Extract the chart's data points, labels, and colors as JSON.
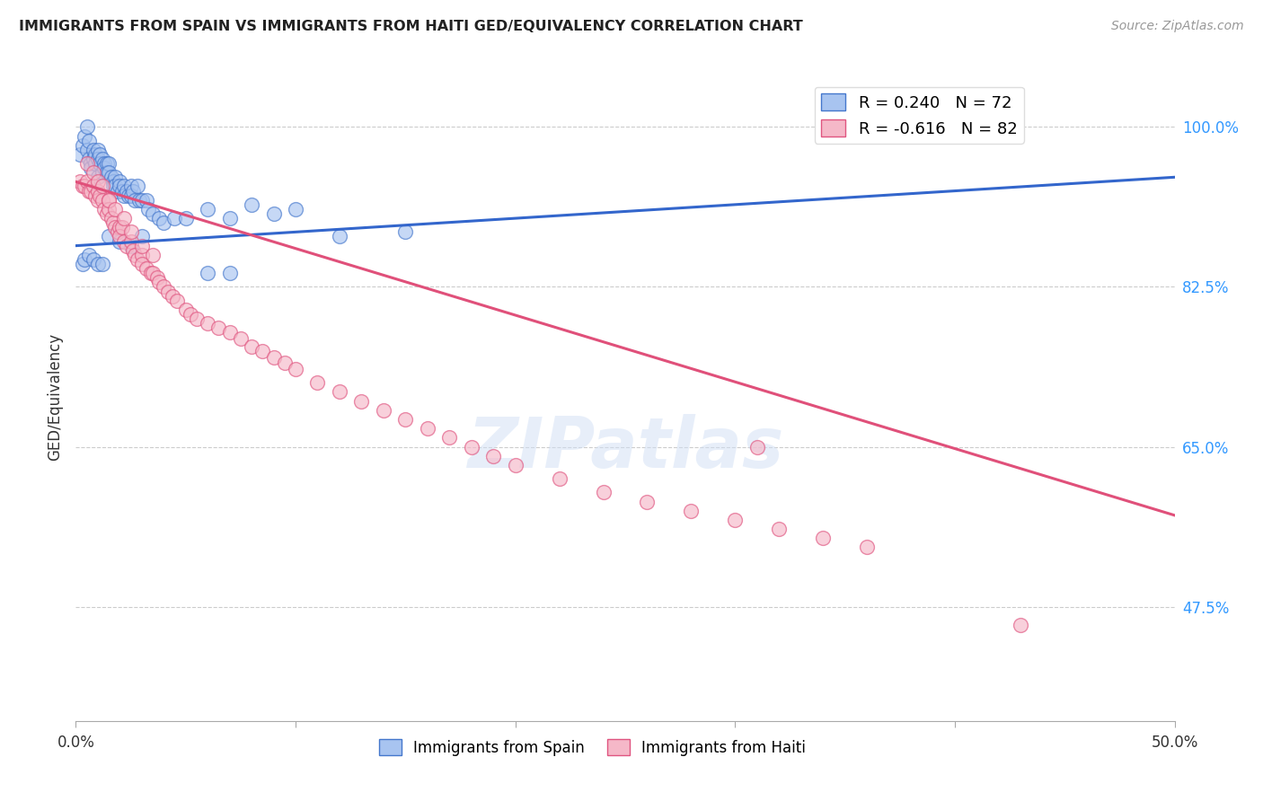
{
  "title": "IMMIGRANTS FROM SPAIN VS IMMIGRANTS FROM HAITI GED/EQUIVALENCY CORRELATION CHART",
  "source": "Source: ZipAtlas.com",
  "ylabel": "GED/Equivalency",
  "yticks": [
    0.475,
    0.65,
    0.825,
    1.0
  ],
  "ytick_labels": [
    "47.5%",
    "65.0%",
    "82.5%",
    "100.0%"
  ],
  "xmin": 0.0,
  "xmax": 0.5,
  "ymin": 0.35,
  "ymax": 1.06,
  "legend1_label": "R = 0.240   N = 72",
  "legend2_label": "R = -0.616   N = 82",
  "spain_face_color": "#a8c4f0",
  "spain_edge_color": "#4477cc",
  "haiti_face_color": "#f5b8c8",
  "haiti_edge_color": "#e05580",
  "line1_color": "#3366cc",
  "line2_color": "#e0507a",
  "watermark": "ZIPatlas",
  "line1_x": [
    0.0,
    0.5
  ],
  "line1_y": [
    0.87,
    0.945
  ],
  "line2_x": [
    0.0,
    0.5
  ],
  "line2_y": [
    0.94,
    0.575
  ],
  "spain_x": [
    0.002,
    0.003,
    0.004,
    0.005,
    0.005,
    0.006,
    0.006,
    0.007,
    0.007,
    0.008,
    0.008,
    0.009,
    0.009,
    0.01,
    0.01,
    0.01,
    0.011,
    0.011,
    0.012,
    0.012,
    0.013,
    0.013,
    0.014,
    0.014,
    0.015,
    0.015,
    0.016,
    0.017,
    0.017,
    0.018,
    0.018,
    0.019,
    0.02,
    0.02,
    0.021,
    0.022,
    0.022,
    0.023,
    0.024,
    0.025,
    0.025,
    0.026,
    0.027,
    0.028,
    0.029,
    0.03,
    0.032,
    0.033,
    0.035,
    0.038,
    0.04,
    0.045,
    0.05,
    0.06,
    0.07,
    0.08,
    0.09,
    0.1,
    0.015,
    0.02,
    0.025,
    0.03,
    0.12,
    0.15,
    0.003,
    0.004,
    0.006,
    0.008,
    0.01,
    0.012,
    0.06,
    0.07
  ],
  "spain_y": [
    0.97,
    0.98,
    0.99,
    1.0,
    0.975,
    0.985,
    0.965,
    0.96,
    0.955,
    0.975,
    0.965,
    0.97,
    0.96,
    0.975,
    0.965,
    0.945,
    0.97,
    0.96,
    0.965,
    0.95,
    0.96,
    0.955,
    0.96,
    0.95,
    0.96,
    0.95,
    0.945,
    0.94,
    0.935,
    0.945,
    0.935,
    0.93,
    0.94,
    0.935,
    0.93,
    0.935,
    0.925,
    0.93,
    0.925,
    0.935,
    0.925,
    0.93,
    0.92,
    0.935,
    0.92,
    0.92,
    0.92,
    0.91,
    0.905,
    0.9,
    0.895,
    0.9,
    0.9,
    0.91,
    0.9,
    0.915,
    0.905,
    0.91,
    0.88,
    0.875,
    0.87,
    0.88,
    0.88,
    0.885,
    0.85,
    0.855,
    0.86,
    0.855,
    0.85,
    0.85,
    0.84,
    0.84
  ],
  "haiti_x": [
    0.002,
    0.003,
    0.004,
    0.005,
    0.006,
    0.007,
    0.008,
    0.009,
    0.01,
    0.01,
    0.011,
    0.012,
    0.013,
    0.014,
    0.015,
    0.015,
    0.016,
    0.017,
    0.018,
    0.019,
    0.02,
    0.02,
    0.021,
    0.022,
    0.023,
    0.025,
    0.026,
    0.027,
    0.028,
    0.03,
    0.03,
    0.032,
    0.034,
    0.035,
    0.037,
    0.038,
    0.04,
    0.042,
    0.044,
    0.046,
    0.05,
    0.052,
    0.055,
    0.06,
    0.065,
    0.07,
    0.075,
    0.08,
    0.085,
    0.09,
    0.095,
    0.1,
    0.11,
    0.12,
    0.13,
    0.14,
    0.15,
    0.16,
    0.17,
    0.18,
    0.19,
    0.2,
    0.22,
    0.24,
    0.26,
    0.28,
    0.3,
    0.32,
    0.34,
    0.36,
    0.005,
    0.008,
    0.01,
    0.012,
    0.015,
    0.018,
    0.022,
    0.025,
    0.03,
    0.035,
    0.31,
    0.43
  ],
  "haiti_y": [
    0.94,
    0.935,
    0.935,
    0.94,
    0.93,
    0.93,
    0.935,
    0.925,
    0.93,
    0.92,
    0.925,
    0.92,
    0.91,
    0.905,
    0.92,
    0.91,
    0.9,
    0.895,
    0.89,
    0.885,
    0.89,
    0.88,
    0.89,
    0.875,
    0.87,
    0.875,
    0.865,
    0.86,
    0.855,
    0.86,
    0.85,
    0.845,
    0.84,
    0.84,
    0.835,
    0.83,
    0.825,
    0.82,
    0.815,
    0.81,
    0.8,
    0.795,
    0.79,
    0.785,
    0.78,
    0.775,
    0.768,
    0.76,
    0.755,
    0.748,
    0.742,
    0.735,
    0.72,
    0.71,
    0.7,
    0.69,
    0.68,
    0.67,
    0.66,
    0.65,
    0.64,
    0.63,
    0.615,
    0.6,
    0.59,
    0.58,
    0.57,
    0.56,
    0.55,
    0.54,
    0.96,
    0.95,
    0.94,
    0.935,
    0.92,
    0.91,
    0.9,
    0.885,
    0.87,
    0.86,
    0.65,
    0.455
  ]
}
